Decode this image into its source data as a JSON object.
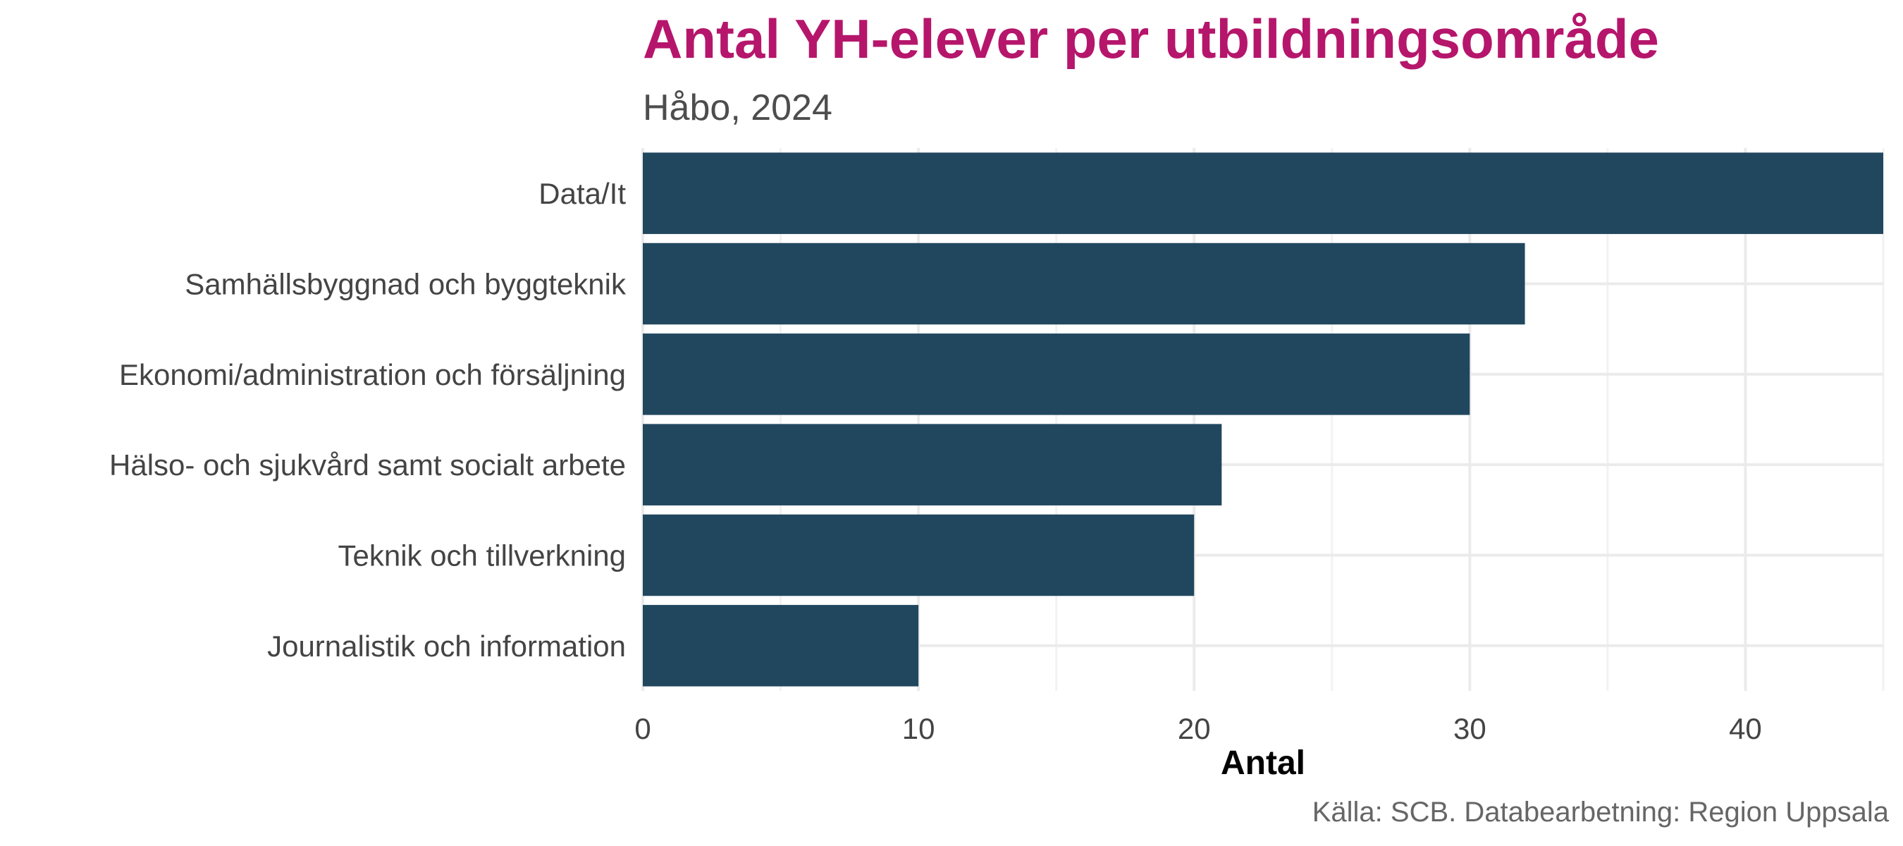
{
  "chart_data": {
    "type": "bar",
    "orientation": "horizontal",
    "title": "Antal YH-elever per utbildningsområde",
    "subtitle": "Håbo, 2024",
    "xlabel": "Antal",
    "ylabel": "",
    "caption": "Källa: SCB. Databearbetning: Region Uppsala",
    "categories": [
      "Data/It",
      "Samhällsbyggnad och byggteknik",
      "Ekonomi/administration och försäljning",
      "Hälso- och sjukvård samt socialt arbete",
      "Teknik och tillverkning",
      "Journalistik och information"
    ],
    "values": [
      45,
      32,
      30,
      21,
      20,
      10
    ],
    "xlim": [
      0,
      45
    ],
    "x_ticks": [
      0,
      10,
      20,
      30,
      40
    ],
    "grid": true,
    "legend": "none",
    "bar_color": "#21475f",
    "title_color": "#b5166b"
  }
}
